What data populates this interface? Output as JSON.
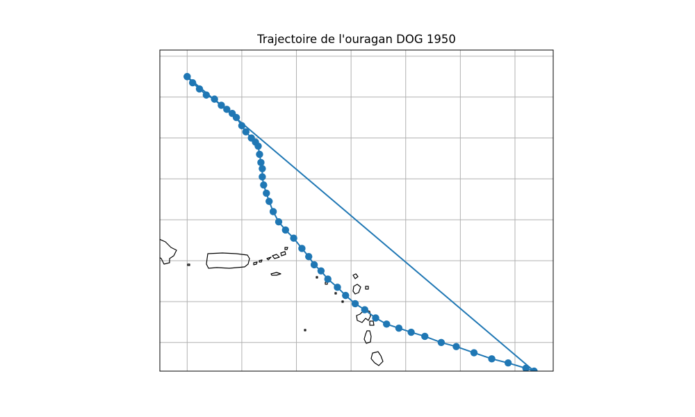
{
  "chart_data": {
    "type": "line",
    "title": "Trajectoire de l'ouragan DOG 1950",
    "xlabel": "",
    "ylabel": "",
    "grid": true,
    "series_color": "#1f77b4",
    "coastline_color": "#000000",
    "xlim": [
      -68.5,
      -54.1
    ],
    "ylim": [
      13.3,
      21.15
    ],
    "gridlines_lon": [
      -67.5,
      -65.5,
      -63.5,
      -61.5,
      -59.5,
      -57.5,
      -55.5
    ],
    "gridlines_lat": [
      14,
      15,
      16,
      17,
      18,
      19,
      20,
      21
    ],
    "series": [
      {
        "name": "DOG 1950",
        "lon": [
          -67.5,
          -67.3,
          -67.05,
          -66.8,
          -66.5,
          -66.25,
          -66.05,
          -65.85,
          -65.7,
          -65.5,
          -65.35,
          -65.15,
          -65.0,
          -64.9,
          -64.85,
          -64.8,
          -64.75,
          -64.75,
          -64.7,
          -64.6,
          -64.5,
          -64.35,
          -64.15,
          -63.9,
          -63.6,
          -63.3,
          -63.05,
          -62.85,
          -62.6,
          -62.35,
          -62.0,
          -61.7,
          -61.35,
          -61.0,
          -60.6,
          -60.2,
          -59.75,
          -59.3,
          -58.8,
          -58.2,
          -57.65,
          -57.0,
          -56.35,
          -55.75,
          -55.1,
          -54.8,
          -67.5
        ],
        "lat": [
          20.5,
          20.35,
          20.2,
          20.05,
          19.95,
          19.8,
          19.7,
          19.6,
          19.5,
          19.3,
          19.15,
          19.0,
          18.9,
          18.8,
          18.6,
          18.4,
          18.25,
          18.05,
          17.85,
          17.65,
          17.45,
          17.2,
          16.95,
          16.75,
          16.55,
          16.3,
          16.1,
          15.9,
          15.75,
          15.55,
          15.35,
          15.15,
          14.95,
          14.8,
          14.6,
          14.45,
          14.35,
          14.25,
          14.15,
          14.0,
          13.9,
          13.75,
          13.6,
          13.5,
          13.37,
          13.3,
          20.5
        ]
      }
    ],
    "land_features": [
      "Hispaniola",
      "Puerto Rico",
      "Virgin Islands",
      "Anguilla",
      "Barbuda",
      "Antigua",
      "Montserrat",
      "Guadeloupe",
      "Marie-Galante",
      "Dominica",
      "Aves Island"
    ]
  }
}
